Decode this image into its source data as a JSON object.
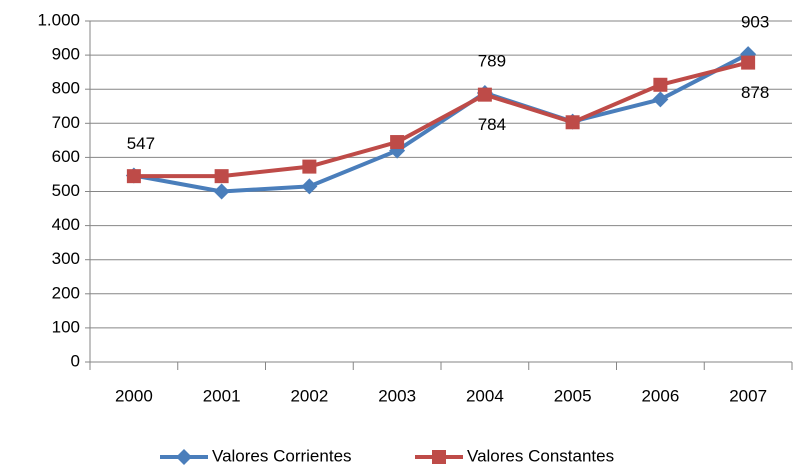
{
  "chart_data": {
    "type": "line",
    "categories": [
      "2000",
      "2001",
      "2002",
      "2003",
      "2004",
      "2005",
      "2006",
      "2007"
    ],
    "series": [
      {
        "name": "Valores Corrientes",
        "color": "#4a7ebb",
        "marker": "diamond",
        "values": [
          547,
          500,
          515,
          620,
          789,
          705,
          770,
          903
        ],
        "value_labels": [
          "547",
          null,
          null,
          null,
          "789",
          null,
          null,
          "903"
        ],
        "label_position": "above"
      },
      {
        "name": "Valores Constantes",
        "color": "#be4b48",
        "marker": "square",
        "values": [
          545,
          545,
          573,
          645,
          784,
          703,
          813,
          878
        ],
        "value_labels": [
          null,
          null,
          null,
          null,
          "784",
          null,
          null,
          "878"
        ],
        "label_position": "below"
      }
    ],
    "ylim": [
      0,
      1000
    ],
    "yticks": [
      0,
      100,
      200,
      300,
      400,
      500,
      600,
      700,
      800,
      900,
      {
        "value": 1000,
        "label": "1.000"
      }
    ],
    "grid": true,
    "legend": "bottom"
  }
}
